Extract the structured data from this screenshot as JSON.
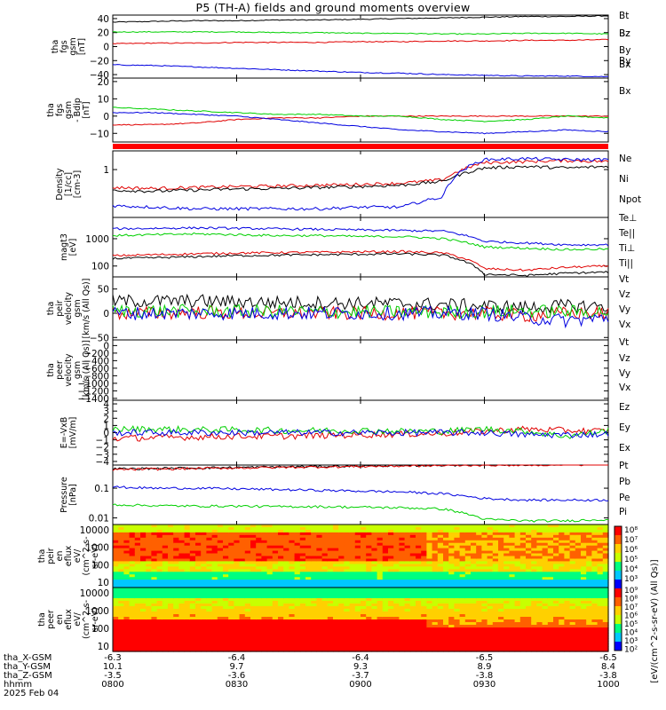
{
  "title": "P5 (TH-A) fields and ground moments overview",
  "colors": {
    "black": "#000000",
    "red": "#e00000",
    "green": "#00d000",
    "blue": "#0000e0",
    "status_bar": "#ff0000"
  },
  "chart_data": [
    {
      "type": "line",
      "panel": "fgs-gsm",
      "ylabel": [
        "tha",
        "fgs",
        "gsm",
        "[nT]"
      ],
      "ylim": [
        -45,
        45
      ],
      "yticks": [
        40,
        20,
        0,
        -20,
        -40
      ],
      "series": [
        {
          "name": "Bt",
          "color": "#000000",
          "values": [
            35,
            36,
            37,
            37,
            38,
            38,
            39,
            40,
            41,
            42,
            43,
            43,
            44
          ]
        },
        {
          "name": "Bz",
          "color": "#e00000",
          "values": [
            4,
            5,
            5,
            6,
            6,
            6,
            7,
            7,
            8,
            8,
            9,
            9,
            10
          ]
        },
        {
          "name": "By",
          "color": "#00d000",
          "values": [
            21,
            21,
            21,
            21,
            20,
            20,
            19,
            19,
            18,
            18,
            19,
            19,
            18
          ]
        },
        {
          "name": "Bx",
          "color": "#0000e0",
          "values": [
            -26,
            -27,
            -29,
            -31,
            -33,
            -35,
            -37,
            -38,
            -40,
            -41,
            -42,
            -42,
            -43
          ]
        }
      ]
    },
    {
      "type": "line",
      "panel": "fgs-dsl",
      "ylabel": [
        "tha",
        "fgs",
        "gsm",
        "- Bdip",
        "[nT]"
      ],
      "ylim": [
        -15,
        22
      ],
      "yticks": [
        20,
        10,
        0,
        -10
      ],
      "series": [
        {
          "name": "Bz",
          "color": "#e00000",
          "values": [
            -5,
            -5,
            -4,
            -2,
            -1,
            -1,
            0,
            0,
            0,
            0,
            0,
            0,
            0
          ]
        },
        {
          "name": "By",
          "color": "#00d000",
          "values": [
            5,
            4,
            3,
            2,
            1,
            1,
            0,
            0,
            -2,
            -3,
            -2,
            0,
            -1
          ]
        },
        {
          "name": "Bx",
          "color": "#0000e0",
          "values": [
            2,
            2,
            1,
            0,
            -2,
            -4,
            -6,
            -8,
            -9,
            -10,
            -9,
            -8,
            -9
          ]
        }
      ]
    },
    {
      "type": "line",
      "panel": "density",
      "scale": "log",
      "ylabel": [
        "Density",
        "[1/cc]",
        "[cm-3]"
      ],
      "ylim": [
        0.06,
        3
      ],
      "yticks": [
        1
      ],
      "series": [
        {
          "name": "Ne",
          "color": "#e00000",
          "values": [
            0.35,
            0.33,
            0.35,
            0.37,
            0.38,
            0.4,
            0.42,
            0.45,
            0.55,
            1.5,
            1.6,
            1.7,
            1.6
          ]
        },
        {
          "name": "Ni",
          "color": "#000000",
          "values": [
            0.3,
            0.28,
            0.3,
            0.32,
            0.33,
            0.35,
            0.37,
            0.4,
            0.5,
            1.1,
            1.2,
            1.1,
            1.2
          ]
        },
        {
          "name": "Npot",
          "color": "#0000e0",
          "values": [
            0.12,
            0.11,
            0.1,
            0.1,
            0.1,
            0.1,
            0.11,
            0.11,
            0.2,
            1.8,
            1.9,
            1.8,
            1.8
          ]
        }
      ]
    },
    {
      "type": "line",
      "panel": "temperature",
      "scale": "log",
      "ylabel": [
        "magt3",
        "[eV]"
      ],
      "ylim": [
        40,
        6000
      ],
      "yticks": [
        1000,
        100
      ],
      "series": [
        {
          "name": "Te⊥",
          "color": "#e00000",
          "values": [
            240,
            260,
            280,
            300,
            310,
            320,
            330,
            340,
            300,
            80,
            70,
            90,
            100
          ]
        },
        {
          "name": "Te||",
          "color": "#000000",
          "values": [
            190,
            200,
            220,
            240,
            250,
            260,
            270,
            280,
            250,
            50,
            45,
            55,
            60
          ]
        },
        {
          "name": "Ti⊥",
          "color": "#0000e0",
          "values": [
            2300,
            2400,
            2500,
            2400,
            2300,
            2200,
            2100,
            2000,
            1900,
            800,
            700,
            600,
            600
          ]
        },
        {
          "name": "Ti||",
          "color": "#00d000",
          "values": [
            1300,
            1400,
            1500,
            1400,
            1300,
            1300,
            1200,
            1200,
            1000,
            500,
            450,
            400,
            420
          ]
        }
      ]
    },
    {
      "type": "line",
      "panel": "peir-velocity",
      "ylabel": [
        "tha",
        "peir",
        "velocity",
        "gsm",
        "[km/s (All Qs)]"
      ],
      "ylim": [
        -55,
        75
      ],
      "yticks": [
        50,
        0,
        -50
      ],
      "series": [
        {
          "name": "Vt",
          "color": "#000000",
          "values": [
            25,
            25,
            25,
            24,
            22,
            22,
            20,
            20,
            18,
            15,
            12,
            15,
            15
          ]
        },
        {
          "name": "Vz",
          "color": "#e00000",
          "values": [
            0,
            0,
            2,
            0,
            0,
            0,
            0,
            0,
            0,
            0,
            -5,
            0,
            0
          ]
        },
        {
          "name": "Vy",
          "color": "#00d000",
          "values": [
            5,
            5,
            4,
            4,
            4,
            3,
            3,
            3,
            2,
            3,
            5,
            3,
            3
          ]
        },
        {
          "name": "Vx",
          "color": "#0000e0",
          "values": [
            0,
            0,
            0,
            0,
            0,
            0,
            0,
            0,
            0,
            0,
            -10,
            -15,
            -10
          ]
        }
      ]
    },
    {
      "type": "line",
      "panel": "peer-velocity",
      "ylabel": [
        "tha",
        "peer",
        "velocity",
        "gsm",
        "[km/s (All Qs)]"
      ],
      "ylim": [
        -1450,
        150
      ],
      "yticks": [
        0,
        -200,
        -400,
        -600,
        -800,
        -1000,
        -1200,
        -1400
      ],
      "series": [
        {
          "name": "Vt",
          "color": "#000000",
          "values": []
        },
        {
          "name": "Vz",
          "color": "#e00000",
          "values": []
        },
        {
          "name": "Vy",
          "color": "#00d000",
          "values": []
        },
        {
          "name": "Vx",
          "color": "#0000e0",
          "values": []
        }
      ]
    },
    {
      "type": "line",
      "panel": "efield",
      "ylabel": [
        "E=-VxB",
        "[mV/m]"
      ],
      "ylim": [
        -4.5,
        4.5
      ],
      "yticks": [
        4,
        3,
        2,
        1,
        0,
        -1,
        -2,
        -3,
        -4
      ],
      "series": [
        {
          "name": "Ez",
          "color": "#e00000",
          "values": [
            -0.8,
            -0.7,
            -0.6,
            -0.5,
            -0.5,
            -0.4,
            -0.3,
            -0.2,
            -0.1,
            0.2,
            0.5,
            0.3,
            0.2
          ]
        },
        {
          "name": "Ey",
          "color": "#00d000",
          "values": [
            0.5,
            0.5,
            0.4,
            0.4,
            0.3,
            0.3,
            0.3,
            0.2,
            0.2,
            0.5,
            0.2,
            -0.5,
            0.3
          ]
        },
        {
          "name": "Ex",
          "color": "#0000e0",
          "values": [
            0,
            0,
            0,
            0,
            0,
            0,
            0,
            0,
            0,
            0,
            -0.3,
            -0.3,
            -0.2
          ]
        }
      ]
    },
    {
      "type": "line",
      "panel": "pressure",
      "scale": "log",
      "ylabel": [
        "Pressure",
        "[nPa]"
      ],
      "ylim": [
        0.006,
        0.6
      ],
      "yticks": [
        0.1,
        0.01
      ],
      "series": [
        {
          "name": "Pt",
          "color": "#000000",
          "values": [
            0.45,
            0.46,
            0.48,
            0.5,
            0.52,
            0.54,
            0.56,
            0.58,
            0.6,
            0.62,
            0.63,
            0.64,
            0.65
          ]
        },
        {
          "name": "Pb",
          "color": "#e00000",
          "values": [
            0.42,
            0.44,
            0.46,
            0.48,
            0.5,
            0.52,
            0.54,
            0.56,
            0.58,
            0.6,
            0.61,
            0.62,
            0.63
          ]
        },
        {
          "name": "Pe",
          "color": "#00d000",
          "values": [
            0.028,
            0.026,
            0.025,
            0.025,
            0.024,
            0.024,
            0.023,
            0.022,
            0.02,
            0.009,
            0.008,
            0.008,
            0.009
          ]
        },
        {
          "name": "Pi",
          "color": "#0000e0",
          "values": [
            0.11,
            0.1,
            0.1,
            0.095,
            0.09,
            0.085,
            0.08,
            0.075,
            0.065,
            0.045,
            0.04,
            0.04,
            0.04
          ]
        }
      ]
    },
    {
      "type": "heatmap",
      "panel": "peir-eflux",
      "ylabel": [
        "tha",
        "peir",
        "en",
        "eflux",
        "eV/",
        "(cm^2-s-",
        "sr-eV)"
      ],
      "scale": "log",
      "ylim": [
        5,
        20000
      ],
      "yticks": [
        10000,
        1000,
        100,
        10
      ]
    },
    {
      "type": "heatmap",
      "panel": "peer-eflux",
      "ylabel": [
        "tha",
        "peer",
        "en",
        "eflux",
        "eV/",
        "(cm^2-s-",
        "sr-eV)"
      ],
      "scale": "log",
      "ylim": [
        5,
        20000
      ],
      "yticks": [
        10000,
        1000,
        100,
        10
      ]
    }
  ],
  "colorbar": {
    "label": "[eV/(cm^2-s-sr-eV) (All Qs)]",
    "upper_ticks": [
      "10⁸",
      "10⁷",
      "10⁶",
      "10⁵",
      "10⁴",
      "10³"
    ],
    "lower_ticks": [
      "10⁹",
      "10⁸",
      "10⁷",
      "10⁶",
      "10⁵",
      "10⁴",
      "10³",
      "10²"
    ]
  },
  "x_axis": {
    "tick_times": [
      "0800",
      "0830",
      "0900",
      "0930",
      "1000"
    ],
    "rows": [
      {
        "label": "tha_X-GSM",
        "values": [
          "-6.3",
          "-6.4",
          "-6.4",
          "-6.5",
          "-6.5"
        ]
      },
      {
        "label": "tha_Y-GSM",
        "values": [
          "10.1",
          "9.7",
          "9.3",
          "8.9",
          "8.4"
        ]
      },
      {
        "label": "tha_Z-GSM",
        "values": [
          "-3.5",
          "-3.6",
          "-3.7",
          "-3.8",
          "-3.8"
        ]
      },
      {
        "label": "hhmm",
        "values": [
          "0800",
          "0830",
          "0900",
          "0930",
          "1000"
        ]
      }
    ],
    "date": "2025 Feb 04"
  }
}
